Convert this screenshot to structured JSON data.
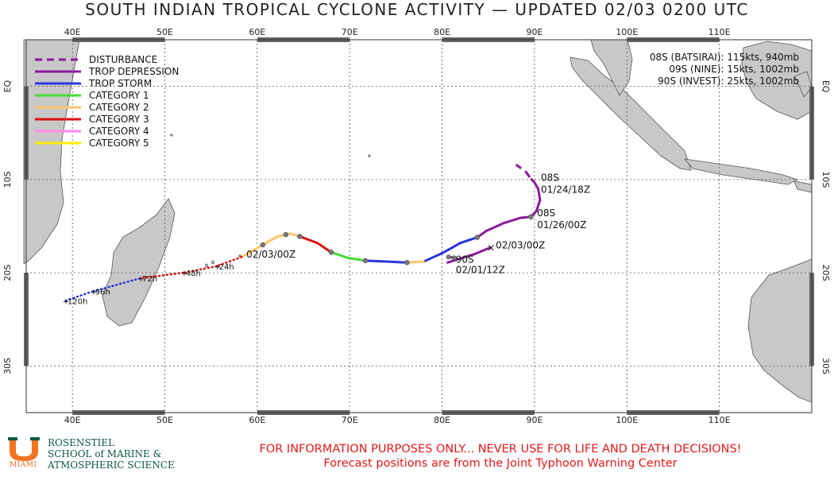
{
  "title": "SOUTH INDIAN TROPICAL CYCLONE ACTIVITY — UPDATED 02/03 0200 UTC",
  "axes": {
    "lon_labels": [
      "40E",
      "50E",
      "60E",
      "70E",
      "80E",
      "90E",
      "100E",
      "110E"
    ],
    "lon_values": [
      40,
      50,
      60,
      70,
      80,
      90,
      100,
      110
    ],
    "lat_labels": [
      "EQ",
      "10S",
      "20S",
      "30S"
    ],
    "lat_values": [
      0,
      -10,
      -20,
      -30
    ],
    "lon_range": [
      35,
      120
    ],
    "lat_range": [
      -35,
      5
    ],
    "gridlines": true
  },
  "legend": {
    "items": [
      {
        "label": "DISTURBANCE",
        "color": "#8b1a9b",
        "style": "dashed"
      },
      {
        "label": "TROP DEPRESSION",
        "color": "#8b1a9b",
        "style": "solid"
      },
      {
        "label": "TROP STORM",
        "color": "#2b35e0",
        "style": "solid"
      },
      {
        "label": "CATEGORY 1",
        "color": "#44dd33",
        "style": "solid"
      },
      {
        "label": "CATEGORY 2",
        "color": "#ffc66a",
        "style": "solid"
      },
      {
        "label": "CATEGORY 3",
        "color": "#dd1111",
        "style": "solid"
      },
      {
        "label": "CATEGORY 4",
        "color": "#ff88ee",
        "style": "solid"
      },
      {
        "label": "CATEGORY 5",
        "color": "#ffee00",
        "style": "solid"
      }
    ]
  },
  "storm_info": [
    "08S (BATSIRAI): 115kts, 940mb",
    "09S (NINE): 15kts, 1002mb",
    "90S (INVEST): 25kts, 1002mb"
  ],
  "storms": [
    {
      "id": "08S",
      "start_label": "08S",
      "start_time": "01/24/18Z",
      "mid_label": "08S",
      "mid_time": "01/26/00Z",
      "current_time": "02/03/00Z",
      "track": [
        {
          "lon": 88.0,
          "lat": -8.4,
          "cat": "disturbance"
        },
        {
          "lon": 89.1,
          "lat": -9.2,
          "cat": "disturbance"
        },
        {
          "lon": 89.6,
          "lat": -9.9,
          "cat": "disturbance"
        },
        {
          "lon": 90.0,
          "lat": -10.3,
          "cat": "td"
        },
        {
          "lon": 90.4,
          "lat": -11.0,
          "cat": "td"
        },
        {
          "lon": 90.6,
          "lat": -12.2,
          "cat": "td"
        },
        {
          "lon": 90.2,
          "lat": -13.4,
          "cat": "td"
        },
        {
          "lon": 89.6,
          "lat": -14.0,
          "cat": "td"
        },
        {
          "lon": 88.5,
          "lat": -14.1,
          "cat": "td"
        },
        {
          "lon": 86.6,
          "lat": -14.7,
          "cat": "td"
        },
        {
          "lon": 84.8,
          "lat": -15.5,
          "cat": "td"
        },
        {
          "lon": 83.8,
          "lat": -16.2,
          "cat": "ts"
        },
        {
          "lon": 82.0,
          "lat": -16.8,
          "cat": "ts"
        },
        {
          "lon": 80.0,
          "lat": -17.9,
          "cat": "ts"
        },
        {
          "lon": 78.0,
          "lat": -18.8,
          "cat": "cat2"
        },
        {
          "lon": 76.2,
          "lat": -18.9,
          "cat": "ts"
        },
        {
          "lon": 74.0,
          "lat": -18.8,
          "cat": "ts"
        },
        {
          "lon": 71.7,
          "lat": -18.7,
          "cat": "cat1"
        },
        {
          "lon": 69.8,
          "lat": -18.4,
          "cat": "cat1"
        },
        {
          "lon": 68.0,
          "lat": -17.8,
          "cat": "cat3"
        },
        {
          "lon": 66.5,
          "lat": -16.8,
          "cat": "cat3"
        },
        {
          "lon": 64.6,
          "lat": -16.1,
          "cat": "cat2"
        },
        {
          "lon": 63.6,
          "lat": -15.8,
          "cat": "cat2"
        },
        {
          "lon": 62.2,
          "lat": -16.1,
          "cat": "cat2"
        },
        {
          "lon": 60.6,
          "lat": -17.0,
          "cat": "cat2"
        },
        {
          "lon": 58.3,
          "lat": -18.3,
          "cat": "cat3"
        }
      ],
      "points": [
        {
          "lon": 89.6,
          "lat": -14.0
        },
        {
          "lon": 83.8,
          "lat": -16.2
        },
        {
          "lon": 76.2,
          "lat": -18.9
        },
        {
          "lon": 71.7,
          "lat": -18.7
        },
        {
          "lon": 68.0,
          "lat": -17.8
        },
        {
          "lon": 64.6,
          "lat": -16.1
        },
        {
          "lon": 63.1,
          "lat": -15.9
        },
        {
          "lon": 60.6,
          "lat": -17.0
        }
      ],
      "forecast": [
        {
          "lon": 58.3,
          "lat": -18.3,
          "label": ""
        },
        {
          "lon": 55.6,
          "lat": -19.3,
          "label": "+24h"
        },
        {
          "lon": 52.0,
          "lat": -20.0,
          "label": "+48h"
        },
        {
          "lon": 47.3,
          "lat": -20.6,
          "label": "+72h"
        },
        {
          "lon": 42.2,
          "lat": -22.0,
          "label": "+96h"
        },
        {
          "lon": 39.2,
          "lat": -23.0,
          "label": "+120h"
        }
      ]
    },
    {
      "id": "09S",
      "current_time": "02/03/00Z",
      "track": [
        {
          "lon": 80.6,
          "lat": -18.9
        },
        {
          "lon": 83.5,
          "lat": -18.0
        },
        {
          "lon": 85.2,
          "lat": -17.3
        }
      ]
    },
    {
      "id": "90S",
      "label": "90S",
      "time": "02/01/12Z",
      "track": [
        {
          "lon": 81.3,
          "lat": -18.4
        },
        {
          "lon": 80.7,
          "lat": -18.3
        }
      ]
    }
  ],
  "disclaimer": [
    "FOR INFORMATION PURPOSES ONLY... NEVER USE FOR LIFE AND DEATH DECISIONS!",
    "Forecast positions are from the Joint Typhoon Warning Center"
  ],
  "logo": {
    "miami": "MIAMI",
    "lines": [
      "ROSENSTIEL",
      "SCHOOL of MARINE &",
      "ATMOSPHERIC SCIENCE"
    ],
    "colors": {
      "orange": "#f47321",
      "green": "#0b5a3c"
    }
  },
  "colors": {
    "land": "#c8c8c8",
    "ocean": "#ffffff",
    "border_bar": "#666666"
  }
}
